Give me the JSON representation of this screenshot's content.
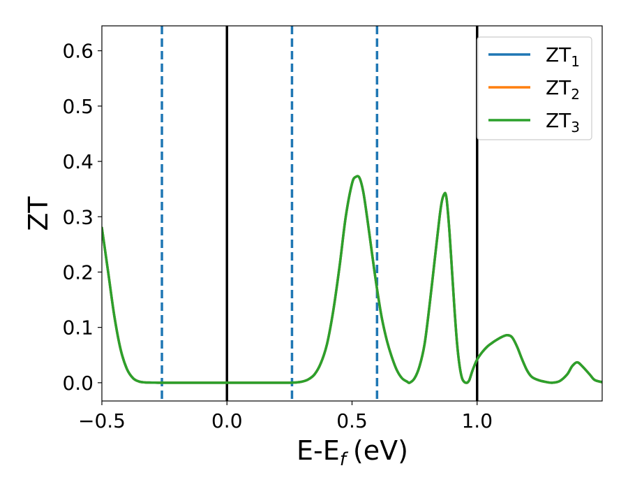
{
  "chart_data": {
    "type": "line",
    "title": "",
    "xlabel": "E-E",
    "xlabel_sub": "f",
    "xlabel_unit": "(eV)",
    "ylabel": "ZT",
    "xlim": [
      -0.5,
      1.5
    ],
    "ylim": [
      -0.033,
      0.645
    ],
    "xticks": [
      -0.5,
      0.0,
      0.5,
      1.0
    ],
    "xtick_labels": [
      "−0.5",
      "0.0",
      "0.5",
      "1.0"
    ],
    "yticks": [
      0.0,
      0.1,
      0.2,
      0.3,
      0.4,
      0.5,
      0.6
    ],
    "ytick_labels": [
      "0.0",
      "0.1",
      "0.2",
      "0.3",
      "0.4",
      "0.5",
      "0.6"
    ],
    "grid": false,
    "legend_position": "top-right",
    "vertical_lines_solid": [
      0.0,
      1.0
    ],
    "vertical_lines_dashed": [
      -0.26,
      0.26,
      0.6
    ],
    "colors": {
      "series": [
        "#1f77b4",
        "#ff7f0e",
        "#2ca02c"
      ],
      "solid_lines": "#000000",
      "dashed_lines": "#1f77b4"
    },
    "series": [
      {
        "name": "ZT",
        "name_sub": "1",
        "x": [
          -0.5,
          -0.475,
          -0.45,
          -0.425,
          -0.4,
          -0.375,
          -0.35,
          -0.325,
          -0.3,
          -0.275,
          -0.25,
          -0.2,
          -0.1,
          0.0,
          0.1,
          0.2,
          0.25,
          0.275,
          0.3,
          0.325,
          0.35,
          0.375,
          0.4,
          0.425,
          0.45,
          0.475,
          0.5,
          0.515,
          0.53,
          0.545,
          0.56,
          0.575,
          0.59,
          0.605,
          0.62,
          0.64,
          0.66,
          0.68,
          0.7,
          0.72,
          0.73,
          0.75,
          0.77,
          0.79,
          0.81,
          0.83,
          0.85,
          0.86,
          0.87,
          0.875,
          0.88,
          0.89,
          0.9,
          0.91,
          0.92,
          0.93,
          0.94,
          0.95,
          0.96,
          0.965,
          0.97,
          0.98,
          0.99,
          1.0,
          1.02,
          1.04,
          1.06,
          1.08,
          1.1,
          1.12,
          1.14,
          1.16,
          1.18,
          1.2,
          1.22,
          1.25,
          1.28,
          1.3,
          1.33,
          1.36,
          1.38,
          1.4,
          1.42,
          1.45,
          1.47,
          1.5
        ],
        "values": [
          0.28,
          0.2,
          0.12,
          0.06,
          0.025,
          0.008,
          0.002,
          0.0005,
          0.0002,
          0.0,
          0.0,
          0.0,
          0.0,
          0.0,
          0.0,
          0.0,
          0.0,
          0.0005,
          0.002,
          0.006,
          0.015,
          0.035,
          0.07,
          0.13,
          0.21,
          0.3,
          0.36,
          0.372,
          0.37,
          0.345,
          0.3,
          0.25,
          0.2,
          0.155,
          0.115,
          0.075,
          0.045,
          0.022,
          0.008,
          0.002,
          0.0,
          0.008,
          0.03,
          0.07,
          0.14,
          0.22,
          0.3,
          0.33,
          0.342,
          0.34,
          0.325,
          0.27,
          0.2,
          0.13,
          0.07,
          0.03,
          0.008,
          0.001,
          0.0,
          0.002,
          0.006,
          0.02,
          0.032,
          0.042,
          0.055,
          0.065,
          0.072,
          0.078,
          0.083,
          0.086,
          0.082,
          0.065,
          0.042,
          0.022,
          0.01,
          0.004,
          0.001,
          0.0,
          0.003,
          0.015,
          0.03,
          0.037,
          0.03,
          0.015,
          0.005,
          0.001
        ]
      },
      {
        "name": "ZT",
        "name_sub": "2",
        "x": [
          -0.5,
          -0.475,
          -0.45,
          -0.425,
          -0.4,
          -0.375,
          -0.35,
          -0.325,
          -0.3,
          -0.275,
          -0.25,
          -0.2,
          -0.1,
          0.0,
          0.1,
          0.2,
          0.25,
          0.275,
          0.3,
          0.325,
          0.35,
          0.375,
          0.4,
          0.425,
          0.45,
          0.475,
          0.5,
          0.515,
          0.53,
          0.545,
          0.56,
          0.575,
          0.59,
          0.605,
          0.62,
          0.64,
          0.66,
          0.68,
          0.7,
          0.72,
          0.73,
          0.75,
          0.77,
          0.79,
          0.81,
          0.83,
          0.85,
          0.86,
          0.87,
          0.875,
          0.88,
          0.89,
          0.9,
          0.91,
          0.92,
          0.93,
          0.94,
          0.95,
          0.96,
          0.965,
          0.97,
          0.98,
          0.99,
          1.0,
          1.02,
          1.04,
          1.06,
          1.08,
          1.1,
          1.12,
          1.14,
          1.16,
          1.18,
          1.2,
          1.22,
          1.25,
          1.28,
          1.3,
          1.33,
          1.36,
          1.38,
          1.4,
          1.42,
          1.45,
          1.47,
          1.5
        ],
        "values": [
          0.28,
          0.2,
          0.12,
          0.06,
          0.025,
          0.008,
          0.002,
          0.0005,
          0.0002,
          0.0,
          0.0,
          0.0,
          0.0,
          0.0,
          0.0,
          0.0,
          0.0,
          0.0005,
          0.002,
          0.006,
          0.015,
          0.035,
          0.07,
          0.13,
          0.21,
          0.3,
          0.36,
          0.372,
          0.37,
          0.345,
          0.3,
          0.25,
          0.2,
          0.155,
          0.115,
          0.075,
          0.045,
          0.022,
          0.008,
          0.002,
          0.0,
          0.008,
          0.03,
          0.07,
          0.14,
          0.22,
          0.3,
          0.33,
          0.342,
          0.34,
          0.325,
          0.27,
          0.2,
          0.13,
          0.07,
          0.03,
          0.008,
          0.001,
          0.0,
          0.002,
          0.006,
          0.02,
          0.032,
          0.042,
          0.055,
          0.065,
          0.072,
          0.078,
          0.083,
          0.086,
          0.082,
          0.065,
          0.042,
          0.022,
          0.01,
          0.004,
          0.001,
          0.0,
          0.003,
          0.015,
          0.03,
          0.037,
          0.03,
          0.015,
          0.005,
          0.001
        ]
      },
      {
        "name": "ZT",
        "name_sub": "3",
        "x": [
          -0.5,
          -0.475,
          -0.45,
          -0.425,
          -0.4,
          -0.375,
          -0.35,
          -0.325,
          -0.3,
          -0.275,
          -0.25,
          -0.2,
          -0.1,
          0.0,
          0.1,
          0.2,
          0.25,
          0.275,
          0.3,
          0.325,
          0.35,
          0.375,
          0.4,
          0.425,
          0.45,
          0.475,
          0.5,
          0.515,
          0.53,
          0.545,
          0.56,
          0.575,
          0.59,
          0.605,
          0.62,
          0.64,
          0.66,
          0.68,
          0.7,
          0.72,
          0.73,
          0.75,
          0.77,
          0.79,
          0.81,
          0.83,
          0.85,
          0.86,
          0.87,
          0.875,
          0.88,
          0.89,
          0.9,
          0.91,
          0.92,
          0.93,
          0.94,
          0.95,
          0.96,
          0.965,
          0.97,
          0.98,
          0.99,
          1.0,
          1.02,
          1.04,
          1.06,
          1.08,
          1.1,
          1.12,
          1.14,
          1.16,
          1.18,
          1.2,
          1.22,
          1.25,
          1.28,
          1.3,
          1.33,
          1.36,
          1.38,
          1.4,
          1.42,
          1.45,
          1.47,
          1.5
        ],
        "values": [
          0.28,
          0.2,
          0.12,
          0.06,
          0.025,
          0.008,
          0.002,
          0.0005,
          0.0002,
          0.0,
          0.0,
          0.0,
          0.0,
          0.0,
          0.0,
          0.0,
          0.0,
          0.0005,
          0.002,
          0.006,
          0.015,
          0.035,
          0.07,
          0.13,
          0.21,
          0.3,
          0.36,
          0.372,
          0.37,
          0.345,
          0.3,
          0.25,
          0.2,
          0.155,
          0.115,
          0.075,
          0.045,
          0.022,
          0.008,
          0.002,
          0.0,
          0.008,
          0.03,
          0.07,
          0.14,
          0.22,
          0.3,
          0.33,
          0.342,
          0.34,
          0.325,
          0.27,
          0.2,
          0.13,
          0.07,
          0.03,
          0.008,
          0.001,
          0.0,
          0.002,
          0.006,
          0.02,
          0.032,
          0.042,
          0.055,
          0.065,
          0.072,
          0.078,
          0.083,
          0.086,
          0.082,
          0.065,
          0.042,
          0.022,
          0.01,
          0.004,
          0.001,
          0.0,
          0.003,
          0.015,
          0.03,
          0.037,
          0.03,
          0.015,
          0.005,
          0.001
        ]
      }
    ]
  }
}
